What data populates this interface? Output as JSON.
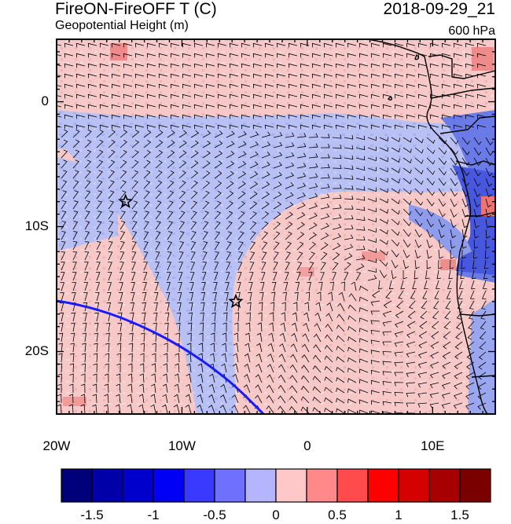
{
  "header": {
    "title_left": "FireON-FireOFF T (C)",
    "title_right": "2018-09-29_21",
    "subtitle": "Geopotential Height (m)",
    "level": "600 hPa"
  },
  "axes": {
    "x_ticks": [
      {
        "lon": -20,
        "label": "20W"
      },
      {
        "lon": -10,
        "label": "10W"
      },
      {
        "lon": 0,
        "label": "0"
      },
      {
        "lon": 10,
        "label": "10E"
      }
    ],
    "y_ticks": [
      {
        "lat": 0,
        "label": "0"
      },
      {
        "lat": -10,
        "label": "10S"
      },
      {
        "lat": -20,
        "label": "20S"
      }
    ],
    "lon_range": [
      -20,
      15
    ],
    "lat_range": [
      -25,
      5
    ]
  },
  "markers": [
    {
      "name": "star-marker-1",
      "lon": -14.5,
      "lat": -8
    },
    {
      "name": "star-marker-2",
      "lon": -5.7,
      "lat": -16
    }
  ],
  "colorbar": {
    "colors": [
      "#00007a",
      "#0000a8",
      "#0000cd",
      "#0000f5",
      "#3a3aff",
      "#7070ff",
      "#b4b4ff",
      "#ffc8c8",
      "#ff8888",
      "#ff4b4b",
      "#ff0000",
      "#d50000",
      "#a60000",
      "#7a0000"
    ],
    "ticks": [
      "-1.5",
      "-1",
      "-0.5",
      "0",
      "0.5",
      "1",
      "1.5"
    ]
  },
  "colors": {
    "positive": "#f6c8c8",
    "negative": "#b8c0f4",
    "contour": "#1a1aff"
  }
}
